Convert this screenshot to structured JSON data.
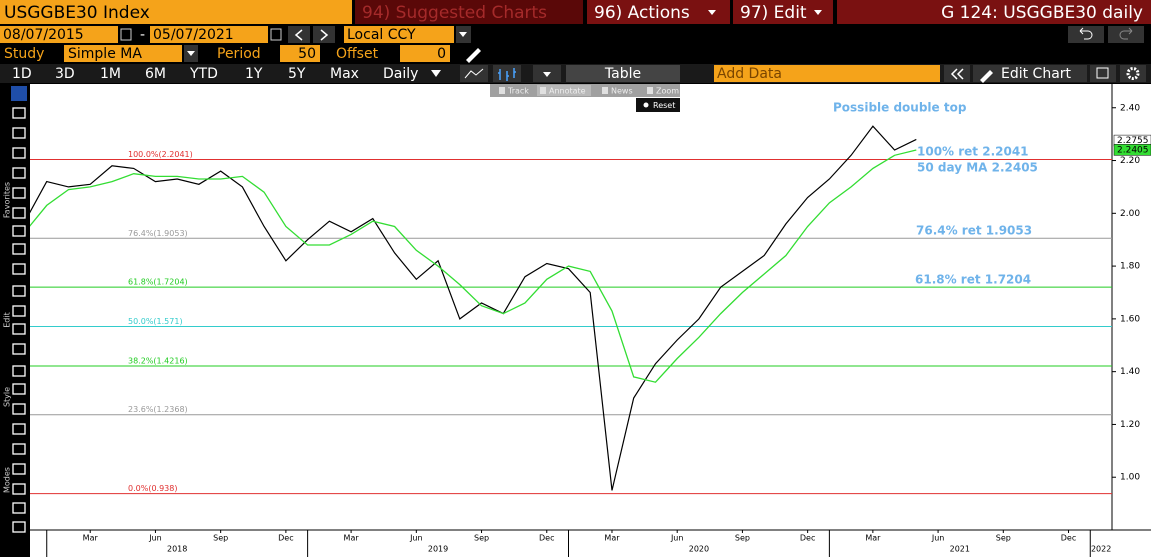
{
  "header": {
    "security": "USGGBE30 Index",
    "menus": [
      "94) Suggested Charts",
      "96) Actions",
      "97) Edit"
    ],
    "page": "G 124: USGGBE30 daily"
  },
  "controls": {
    "start": "08/07/2015",
    "separator": "-",
    "end": "05/07/2021",
    "currency": "Local CCY",
    "study_label": "Study",
    "study": "Simple MA",
    "period_label": "Period",
    "period": 50,
    "offset_label": "Offset",
    "offset": 0
  },
  "ranges": [
    "1D",
    "3D",
    "1M",
    "6M",
    "YTD",
    "1Y",
    "5Y",
    "Max"
  ],
  "frequency": "Daily",
  "table": "Table",
  "add_data": "Add Data",
  "edit_chart": "Edit Chart",
  "chart_tools": [
    "Track",
    "Annotate",
    "News",
    "Zoom"
  ],
  "reset": "Reset",
  "sidebar": [
    "Favorites",
    "Edit",
    "Style",
    "Modes"
  ],
  "chart_data": {
    "type": "line",
    "x": [
      "2017-12",
      "2018-01",
      "2018-02",
      "2018-03",
      "2018-04",
      "2018-05",
      "2018-06",
      "2018-07",
      "2018-08",
      "2018-09",
      "2018-10",
      "2018-11",
      "2018-12",
      "2019-01",
      "2019-02",
      "2019-03",
      "2019-04",
      "2019-05",
      "2019-06",
      "2019-07",
      "2019-08",
      "2019-09",
      "2019-10",
      "2019-11",
      "2019-12",
      "2020-01",
      "2020-02",
      "2020-03",
      "2020-04",
      "2020-05",
      "2020-06",
      "2020-07",
      "2020-08",
      "2020-09",
      "2020-10",
      "2020-11",
      "2020-12",
      "2021-01",
      "2021-02",
      "2021-03",
      "2021-04",
      "2021-05"
    ],
    "series": [
      {
        "color": "#000000",
        "values": [
          1.97,
          2.12,
          2.1,
          2.11,
          2.18,
          2.17,
          2.12,
          2.13,
          2.11,
          2.16,
          2.1,
          1.95,
          1.82,
          1.9,
          1.97,
          1.93,
          1.98,
          1.85,
          1.75,
          1.82,
          1.6,
          1.66,
          1.62,
          1.76,
          1.81,
          1.79,
          1.7,
          0.95,
          1.3,
          1.43,
          1.52,
          1.6,
          1.72,
          1.78,
          1.84,
          1.96,
          2.06,
          2.13,
          2.22,
          2.33,
          2.24,
          2.28
        ]
      },
      {
        "color": "#33dd33",
        "values": [
          1.93,
          2.03,
          2.09,
          2.1,
          2.12,
          2.15,
          2.14,
          2.14,
          2.13,
          2.13,
          2.14,
          2.08,
          1.95,
          1.88,
          1.88,
          1.92,
          1.97,
          1.95,
          1.86,
          1.8,
          1.73,
          1.65,
          1.62,
          1.66,
          1.75,
          1.8,
          1.78,
          1.63,
          1.38,
          1.36,
          1.45,
          1.53,
          1.62,
          1.7,
          1.77,
          1.84,
          1.95,
          2.04,
          2.1,
          2.17,
          2.22,
          2.24
        ]
      }
    ],
    "xlim": [
      "2017-12",
      "2022-02"
    ],
    "xticks": [
      {
        "value": "2018-03",
        "label": "Mar"
      },
      {
        "value": "2018-06",
        "label": "Jun"
      },
      {
        "value": "2018-09",
        "label": "Sep"
      },
      {
        "value": "2018-12",
        "label": "Dec"
      },
      {
        "value": "2019-03",
        "label": "Mar"
      },
      {
        "value": "2019-06",
        "label": "Jun"
      },
      {
        "value": "2019-09",
        "label": "Sep"
      },
      {
        "value": "2019-12",
        "label": "Dec"
      },
      {
        "value": "2020-03",
        "label": "Mar"
      },
      {
        "value": "2020-06",
        "label": "Jun"
      },
      {
        "value": "2020-09",
        "label": "Sep"
      },
      {
        "value": "2020-12",
        "label": "Dec"
      },
      {
        "value": "2021-03",
        "label": "Mar"
      },
      {
        "value": "2021-06",
        "label": "Jun"
      },
      {
        "value": "2021-09",
        "label": "Sep"
      },
      {
        "value": "2021-12",
        "label": "Dec"
      }
    ],
    "years": [
      "2018",
      "2019",
      "2020",
      "2021",
      "2022"
    ],
    "ylim": [
      0.8,
      2.49
    ],
    "yticks": [
      {
        "value": 1.0,
        "label": "1.00"
      },
      {
        "value": 1.2,
        "label": "1.20"
      },
      {
        "value": 1.4,
        "label": "1.40"
      },
      {
        "value": 1.6,
        "label": "1.60"
      },
      {
        "value": 1.8,
        "label": "1.80"
      },
      {
        "value": 2.0,
        "label": "2.00"
      },
      {
        "value": 2.2,
        "label": "2.20"
      },
      {
        "value": 2.4,
        "label": "2.40"
      }
    ],
    "levels": [
      {
        "value": 2.2041,
        "label": "100.0%(2.2041)",
        "color": "#e03030"
      },
      {
        "value": 1.9053,
        "label": "76.4%(1.9053)",
        "color": "#999999"
      },
      {
        "value": 1.7204,
        "label": "61.8%(1.7204)",
        "color": "#22cc22"
      },
      {
        "value": 1.571,
        "label": "50.0%(1.571)",
        "color": "#33cccc"
      },
      {
        "value": 1.4216,
        "label": "38.2%(1.4216)",
        "color": "#22cc22"
      },
      {
        "value": 1.2368,
        "label": "23.6%(1.2368)",
        "color": "#999999"
      },
      {
        "value": 0.938,
        "label": "0.0%(0.938)",
        "color": "#e03030"
      }
    ],
    "last_values": [
      {
        "value": 2.2755,
        "label": "2.2755",
        "color": "#ffffff"
      },
      {
        "value": 2.2405,
        "label": "2.2405",
        "color": "#33dd33"
      }
    ],
    "annotations": [
      "Possible double top",
      "100% ret 2.2041",
      "50 day MA 2.2405",
      "76.4% ret 1.9053",
      "61.8% ret 1.7204"
    ]
  }
}
